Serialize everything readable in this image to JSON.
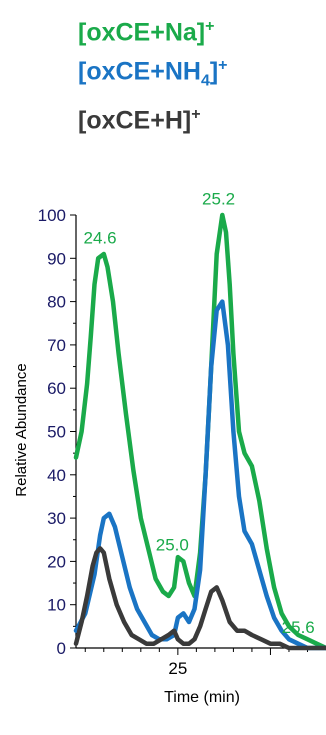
{
  "legend": [
    {
      "text": "[oxCE+Na]",
      "sub": "",
      "tail": "]",
      "sup": "+",
      "color": "#1aaa4a"
    },
    {
      "text": "[oxCE+NH",
      "sub": "4",
      "tail": "]",
      "sup": "+",
      "color": "#1a74c4"
    },
    {
      "text": "[oxCE+H]",
      "sub": "",
      "tail": "]",
      "sup": "+",
      "color": "#3a3a3a"
    }
  ],
  "chart_data": {
    "type": "line",
    "xlabel": "Time (min)",
    "ylabel": "Relative Abundance",
    "xlim": [
      24.45,
      25.8
    ],
    "ylim": [
      0,
      100
    ],
    "yticks": [
      0,
      10,
      20,
      30,
      40,
      50,
      60,
      70,
      80,
      90,
      100
    ],
    "xticks": [
      25
    ],
    "series": [
      {
        "name": "[oxCE+Na]+",
        "color": "#1aaa4a",
        "x": [
          24.45,
          24.48,
          24.51,
          24.53,
          24.55,
          24.57,
          24.6,
          24.62,
          24.65,
          24.68,
          24.72,
          24.76,
          24.8,
          24.84,
          24.88,
          24.92,
          24.95,
          24.98,
          25.0,
          25.03,
          25.06,
          25.09,
          25.12,
          25.15,
          25.18,
          25.21,
          25.24,
          25.26,
          25.28,
          25.3,
          25.33,
          25.36,
          25.4,
          25.44,
          25.48,
          25.52,
          25.56,
          25.6,
          25.65,
          25.7,
          25.75,
          25.8
        ],
        "y": [
          44,
          50,
          61,
          72,
          84,
          90,
          91,
          88,
          80,
          68,
          54,
          41,
          30,
          23,
          16,
          13,
          12,
          14,
          21,
          20,
          15,
          12,
          22,
          40,
          65,
          91,
          100,
          96,
          84,
          68,
          50,
          45,
          42,
          34,
          23,
          14,
          8,
          5,
          3,
          2,
          1,
          0
        ]
      },
      {
        "name": "[oxCE+NH4]+",
        "color": "#1a74c4",
        "x": [
          24.45,
          24.5,
          24.55,
          24.58,
          24.6,
          24.63,
          24.66,
          24.7,
          24.74,
          24.78,
          24.82,
          24.86,
          24.9,
          24.94,
          24.98,
          25.0,
          25.03,
          25.06,
          25.09,
          25.12,
          25.15,
          25.18,
          25.21,
          25.24,
          25.27,
          25.3,
          25.33,
          25.36,
          25.4,
          25.44,
          25.48,
          25.52,
          25.56,
          25.6,
          25.65,
          25.7,
          25.8
        ],
        "y": [
          4,
          8,
          17,
          26,
          30,
          31,
          28,
          21,
          14,
          9,
          6,
          3,
          2,
          2,
          3,
          7,
          8,
          6,
          9,
          18,
          40,
          65,
          78,
          80,
          70,
          50,
          35,
          27,
          24,
          18,
          12,
          7,
          4,
          2,
          1,
          0,
          0
        ]
      },
      {
        "name": "[oxCE+H]+",
        "color": "#3a3a3a",
        "x": [
          24.45,
          24.48,
          24.51,
          24.54,
          24.56,
          24.58,
          24.6,
          24.63,
          24.67,
          24.71,
          24.75,
          24.79,
          24.83,
          24.87,
          24.91,
          24.95,
          24.98,
          25.0,
          25.03,
          25.06,
          25.09,
          25.12,
          25.15,
          25.18,
          25.21,
          25.24,
          25.28,
          25.32,
          25.36,
          25.4,
          25.45,
          25.5,
          25.55,
          25.6,
          25.7,
          25.8
        ],
        "y": [
          1,
          6,
          12,
          19,
          22,
          23,
          22,
          16,
          10,
          6,
          3,
          2,
          1,
          1,
          2,
          3,
          4,
          2,
          1,
          1,
          2,
          5,
          9,
          13,
          14,
          11,
          6,
          4,
          4,
          3,
          2,
          1,
          1,
          0,
          0,
          0
        ]
      }
    ],
    "annotations": [
      {
        "label": "24.6",
        "x": 24.58,
        "y": 93,
        "color": "#1aaa4a"
      },
      {
        "label": "25.2",
        "x": 25.22,
        "y": 102,
        "color": "#1aaa4a"
      },
      {
        "label": "25.0",
        "x": 24.97,
        "y": 22,
        "color": "#1aaa4a"
      },
      {
        "label": "25.6",
        "x": 25.65,
        "y": 3,
        "color": "#1aaa4a"
      }
    ]
  }
}
